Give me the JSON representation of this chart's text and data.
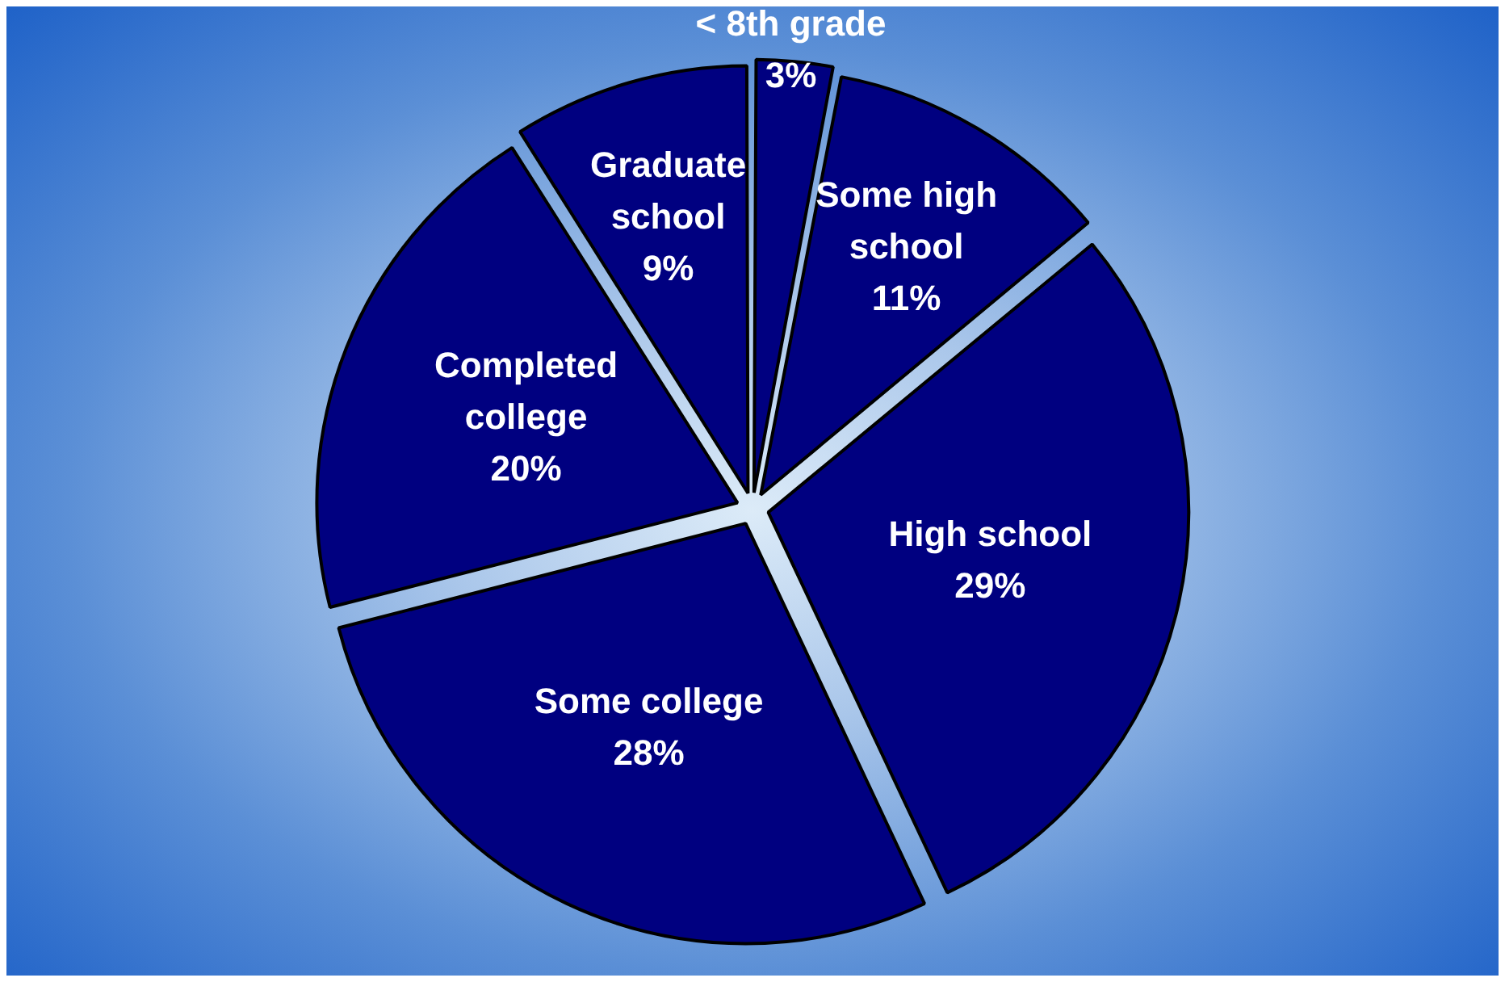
{
  "chart_data": {
    "type": "pie",
    "categories": [
      "< 8th grade",
      "Some high school",
      "High school",
      "Some college",
      "Completed college",
      "Graduate school"
    ],
    "values": [
      3,
      11,
      29,
      28,
      20,
      9
    ],
    "value_labels": [
      "3%",
      "11%",
      "29%",
      "28%",
      "20%",
      "9%"
    ],
    "colors": [
      "#000080",
      "#000080",
      "#000080",
      "#000080",
      "#000080",
      "#000080"
    ],
    "legend": false
  }
}
